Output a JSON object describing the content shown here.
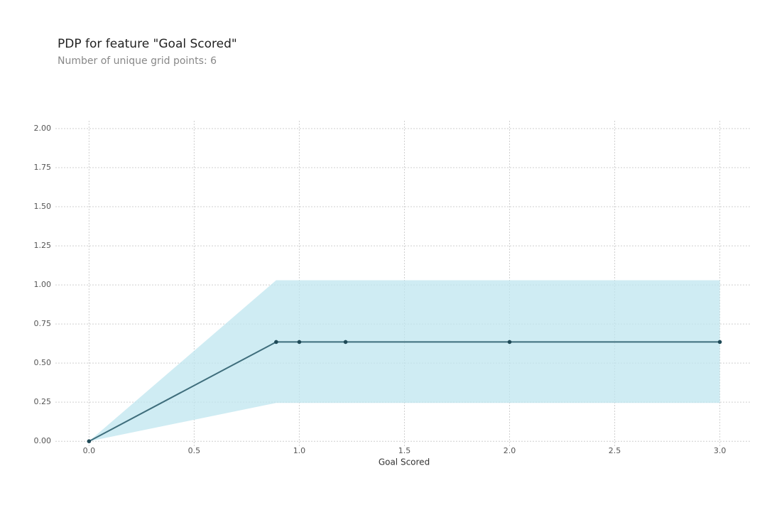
{
  "chart_data": {
    "type": "line",
    "title": "PDP for feature \"Goal Scored\"",
    "subtitle": "Number of unique grid points: 6",
    "xlabel": "Goal Scored",
    "x": [
      0,
      0.89,
      1.0,
      1.22,
      2.0,
      3.0
    ],
    "values": [
      0,
      0.635,
      0.635,
      0.635,
      0.635,
      0.635
    ],
    "upper": [
      0,
      1.03,
      1.03,
      1.03,
      1.03,
      1.03
    ],
    "lower": [
      0,
      0.245,
      0.245,
      0.245,
      0.245,
      0.245
    ],
    "color": "#3f6e7c",
    "band_color": "#bfe6ef",
    "xlim": [
      -0.16,
      3.15
    ],
    "ylim": [
      -0.04,
      2.05
    ],
    "xticks": [
      {
        "value": 0,
        "label": "0.0"
      },
      {
        "value": 0.5,
        "label": "0.5"
      },
      {
        "value": 1,
        "label": "1.0"
      },
      {
        "value": 1.5,
        "label": "1.5"
      },
      {
        "value": 2,
        "label": "2.0"
      },
      {
        "value": 2.5,
        "label": "2.5"
      },
      {
        "value": 3,
        "label": "3.0"
      }
    ],
    "yticks": [
      {
        "value": 0,
        "label": "0.00"
      },
      {
        "value": 0.25,
        "label": "0.25"
      },
      {
        "value": 0.5,
        "label": "0.50"
      },
      {
        "value": 0.75,
        "label": "0.75"
      },
      {
        "value": 1,
        "label": "1.00"
      },
      {
        "value": 1.25,
        "label": "1.25"
      },
      {
        "value": 1.5,
        "label": "1.50"
      },
      {
        "value": 1.75,
        "label": "1.75"
      },
      {
        "value": 2,
        "label": "2.00"
      }
    ],
    "grid": true
  }
}
